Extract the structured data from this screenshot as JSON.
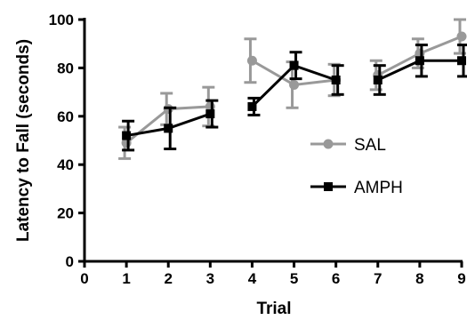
{
  "chart_data": {
    "type": "line",
    "title": "",
    "xlabel": "Trial",
    "ylabel": "Latency to Fall (seconds)",
    "xlim": [
      0,
      9
    ],
    "ylim": [
      0,
      100
    ],
    "xticks": [
      "0",
      "1",
      "2",
      "3",
      "4",
      "5",
      "6",
      "7",
      "8",
      "9"
    ],
    "yticks": [
      "0",
      "20",
      "40",
      "60",
      "80",
      "100"
    ],
    "grid": false,
    "legend_position": "right",
    "x": [
      1,
      2,
      3,
      4,
      5,
      6,
      7,
      8,
      9
    ],
    "series": [
      {
        "name": "SAL",
        "color": "#999999",
        "marker": "circle",
        "segments": [
          [
            1,
            2,
            3
          ],
          [
            4,
            5,
            6
          ],
          [
            7,
            8,
            9
          ]
        ],
        "values": [
          49,
          63,
          64,
          83,
          73,
          75,
          77,
          86,
          93
        ],
        "errors": [
          6.5,
          6.5,
          8,
          9,
          9.5,
          6.5,
          6,
          6,
          7
        ]
      },
      {
        "name": "AMPH",
        "color": "#000000",
        "marker": "square",
        "segments": [
          [
            1,
            2,
            3
          ],
          [
            4,
            5,
            6
          ],
          [
            7,
            8,
            9
          ]
        ],
        "values": [
          52,
          55,
          61,
          64,
          81,
          75,
          75,
          83,
          83
        ],
        "errors": [
          6,
          8.5,
          5.5,
          3.5,
          5.5,
          6,
          6,
          6.5,
          6.5
        ]
      }
    ]
  }
}
